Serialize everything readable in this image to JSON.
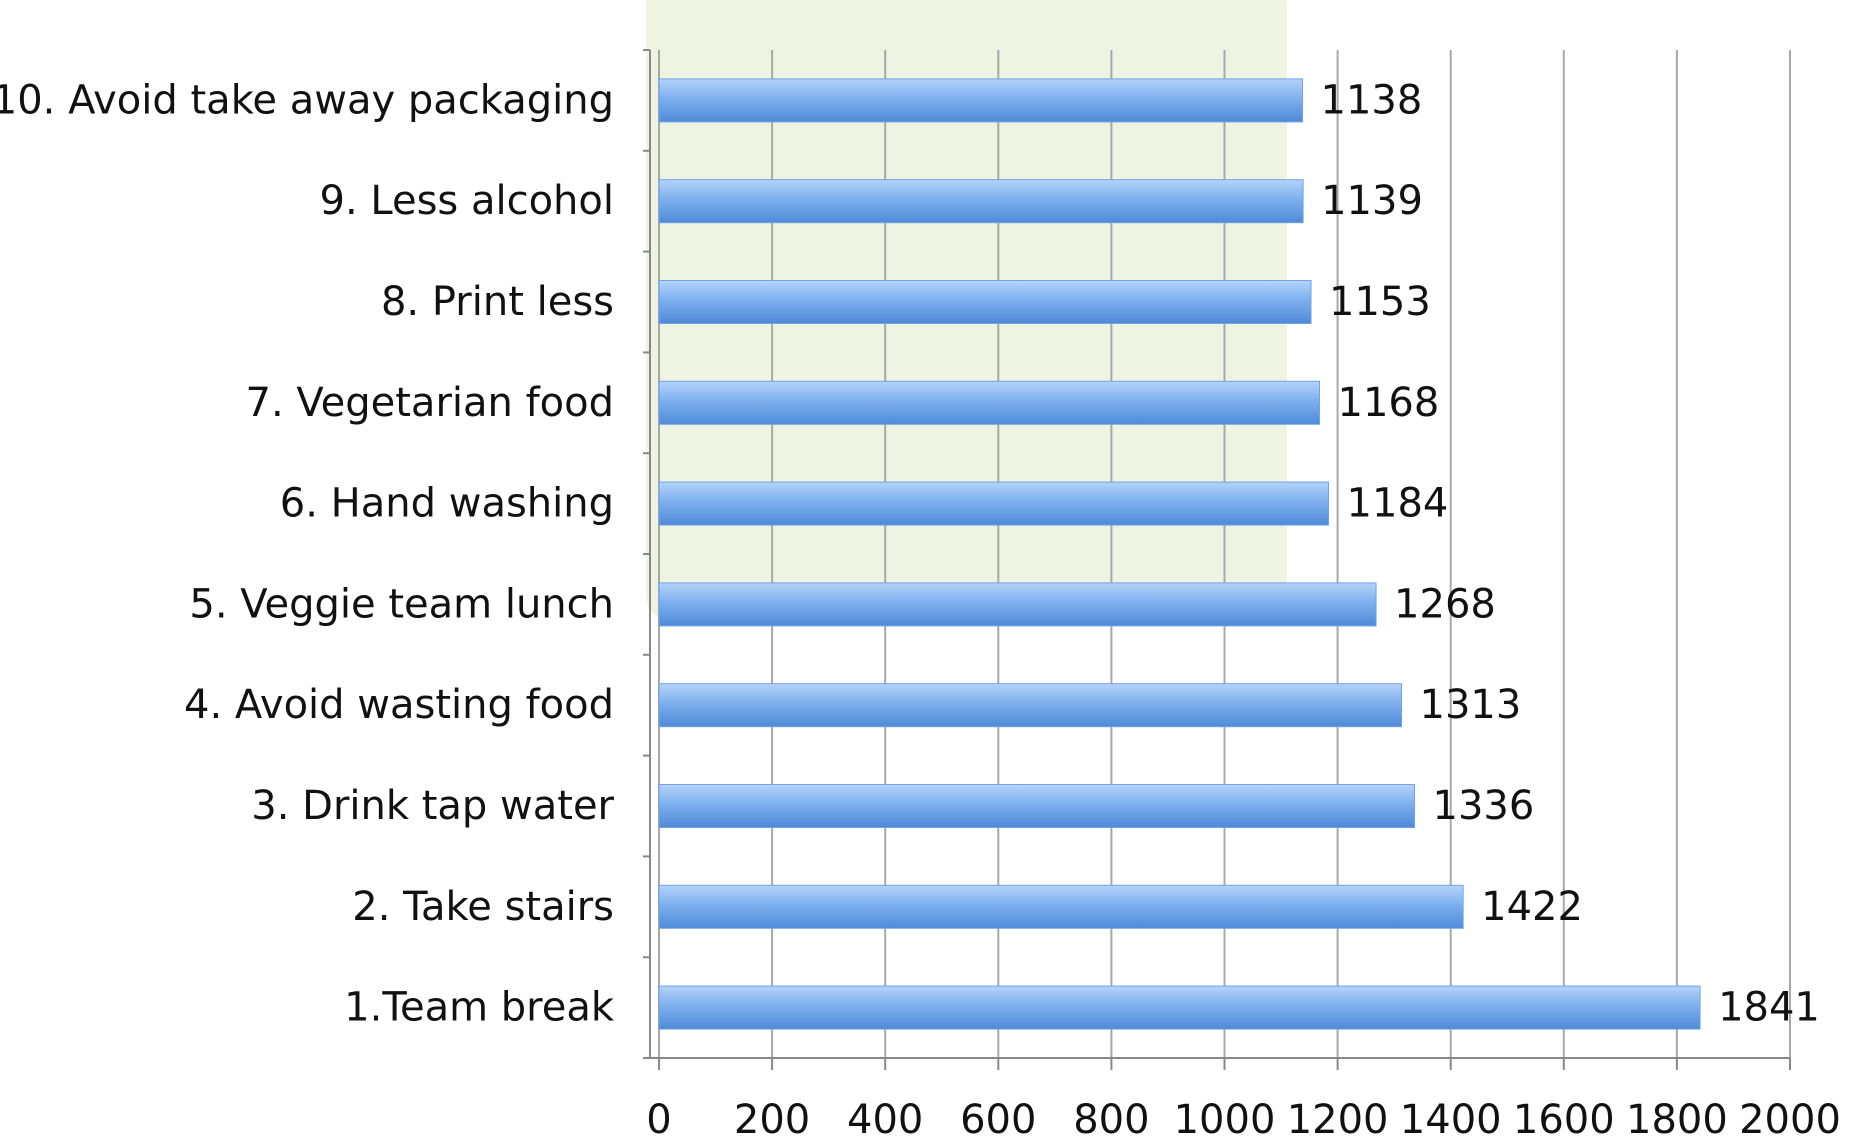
{
  "chart_data": {
    "type": "bar",
    "orientation": "horizontal",
    "categories": [
      "10. Avoid take away packaging",
      "9. Less alcohol",
      "8. Print less",
      "7. Vegetarian food",
      "6. Hand washing",
      "5. Veggie team lunch",
      "4. Avoid wasting food",
      "3. Drink tap water",
      "2. Take stairs",
      "1.Team break"
    ],
    "values": [
      1138,
      1139,
      1153,
      1168,
      1184,
      1268,
      1313,
      1336,
      1422,
      1841
    ],
    "color": "#6fa3e6",
    "xlim": [
      0,
      2000
    ],
    "xticks": [
      0,
      200,
      400,
      600,
      800,
      1000,
      1200,
      1400,
      1600,
      1800,
      2000
    ],
    "grid": true
  }
}
